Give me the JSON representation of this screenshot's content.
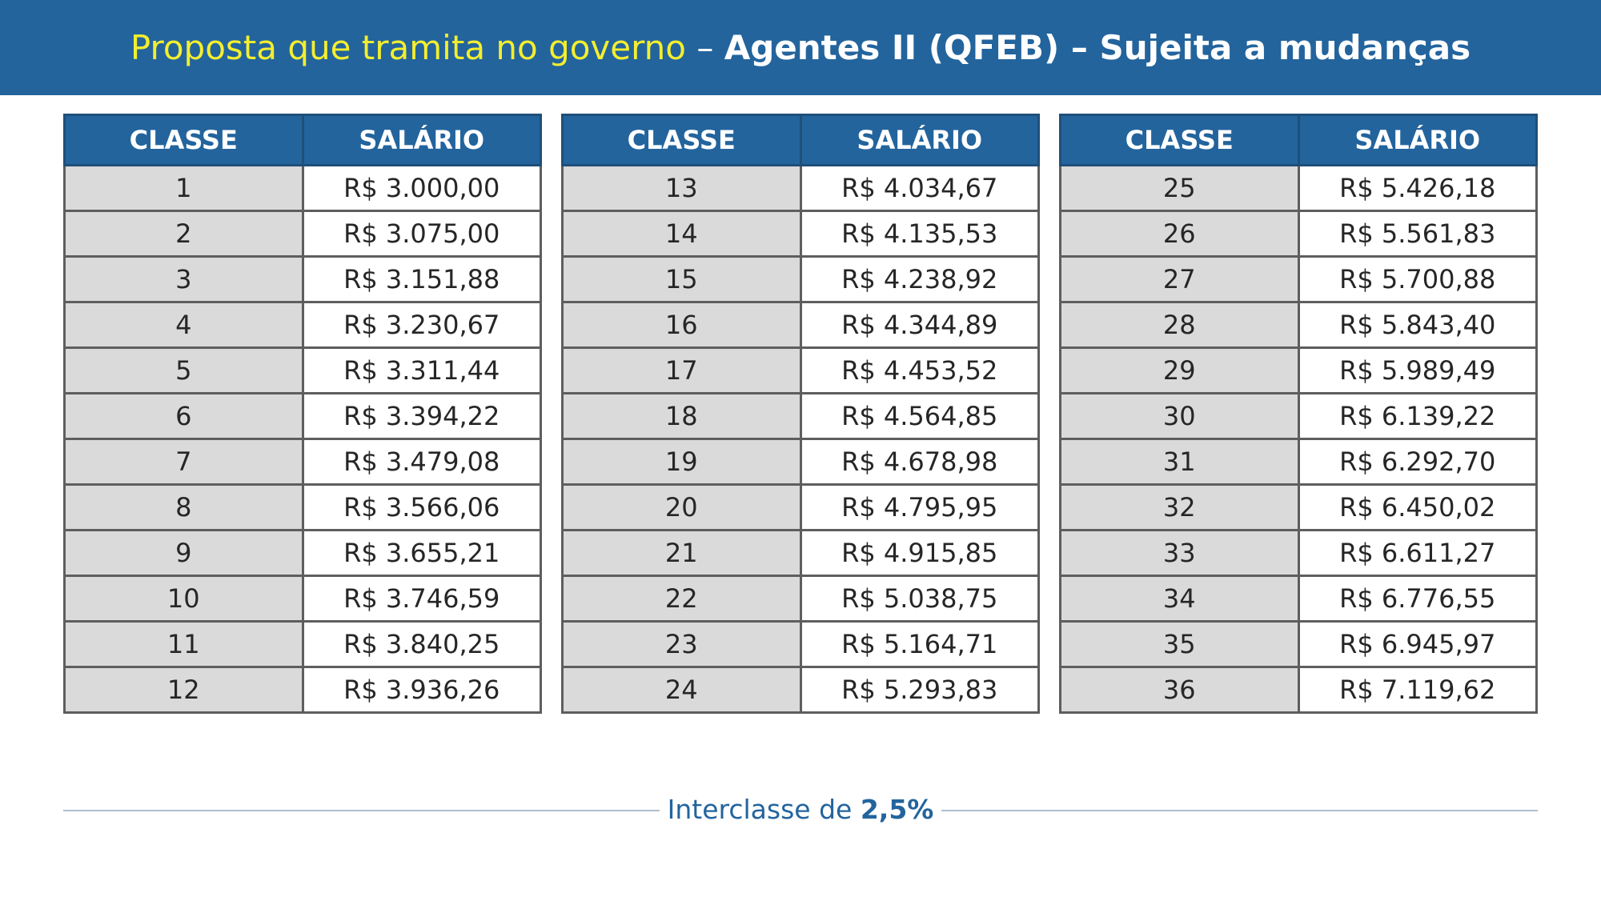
{
  "header": {
    "title_part1": "Proposta que tramita no governo",
    "separator1": " – ",
    "title_part2": "Agentes II (QFEB)",
    "separator2": " – ",
    "title_part3": "Sujeita a mudanças"
  },
  "table": {
    "col_class": "CLASSE",
    "col_salary": "SALÁRIO",
    "groups": [
      [
        {
          "classe": "1",
          "salario": "R$ 3.000,00"
        },
        {
          "classe": "2",
          "salario": "R$ 3.075,00"
        },
        {
          "classe": "3",
          "salario": "R$ 3.151,88"
        },
        {
          "classe": "4",
          "salario": "R$ 3.230,67"
        },
        {
          "classe": "5",
          "salario": "R$ 3.311,44"
        },
        {
          "classe": "6",
          "salario": "R$ 3.394,22"
        },
        {
          "classe": "7",
          "salario": "R$ 3.479,08"
        },
        {
          "classe": "8",
          "salario": "R$ 3.566,06"
        },
        {
          "classe": "9",
          "salario": "R$ 3.655,21"
        },
        {
          "classe": "10",
          "salario": "R$ 3.746,59"
        },
        {
          "classe": "11",
          "salario": "R$ 3.840,25"
        },
        {
          "classe": "12",
          "salario": "R$ 3.936,26"
        }
      ],
      [
        {
          "classe": "13",
          "salario": "R$ 4.034,67"
        },
        {
          "classe": "14",
          "salario": "R$ 4.135,53"
        },
        {
          "classe": "15",
          "salario": "R$ 4.238,92"
        },
        {
          "classe": "16",
          "salario": "R$ 4.344,89"
        },
        {
          "classe": "17",
          "salario": "R$ 4.453,52"
        },
        {
          "classe": "18",
          "salario": "R$ 4.564,85"
        },
        {
          "classe": "19",
          "salario": "R$ 4.678,98"
        },
        {
          "classe": "20",
          "salario": "R$ 4.795,95"
        },
        {
          "classe": "21",
          "salario": "R$ 4.915,85"
        },
        {
          "classe": "22",
          "salario": "R$ 5.038,75"
        },
        {
          "classe": "23",
          "salario": "R$ 5.164,71"
        },
        {
          "classe": "24",
          "salario": "R$ 5.293,83"
        }
      ],
      [
        {
          "classe": "25",
          "salario": "R$ 5.426,18"
        },
        {
          "classe": "26",
          "salario": "R$ 5.561,83"
        },
        {
          "classe": "27",
          "salario": "R$ 5.700,88"
        },
        {
          "classe": "28",
          "salario": "R$ 5.843,40"
        },
        {
          "classe": "29",
          "salario": "R$ 5.989,49"
        },
        {
          "classe": "30",
          "salario": "R$ 6.139,22"
        },
        {
          "classe": "31",
          "salario": "R$ 6.292,70"
        },
        {
          "classe": "32",
          "salario": "R$ 6.450,02"
        },
        {
          "classe": "33",
          "salario": "R$ 6.611,27"
        },
        {
          "classe": "34",
          "salario": "R$ 6.776,55"
        },
        {
          "classe": "35",
          "salario": "R$ 6.945,97"
        },
        {
          "classe": "36",
          "salario": "R$ 7.119,62"
        }
      ]
    ]
  },
  "footer": {
    "label": "Interclasse de ",
    "value": "2,5%"
  },
  "colors": {
    "header_bg": "#23649d",
    "title_highlight": "#f3ee2f",
    "class_cell_bg": "#dadada",
    "border": "#5e5e5e"
  }
}
